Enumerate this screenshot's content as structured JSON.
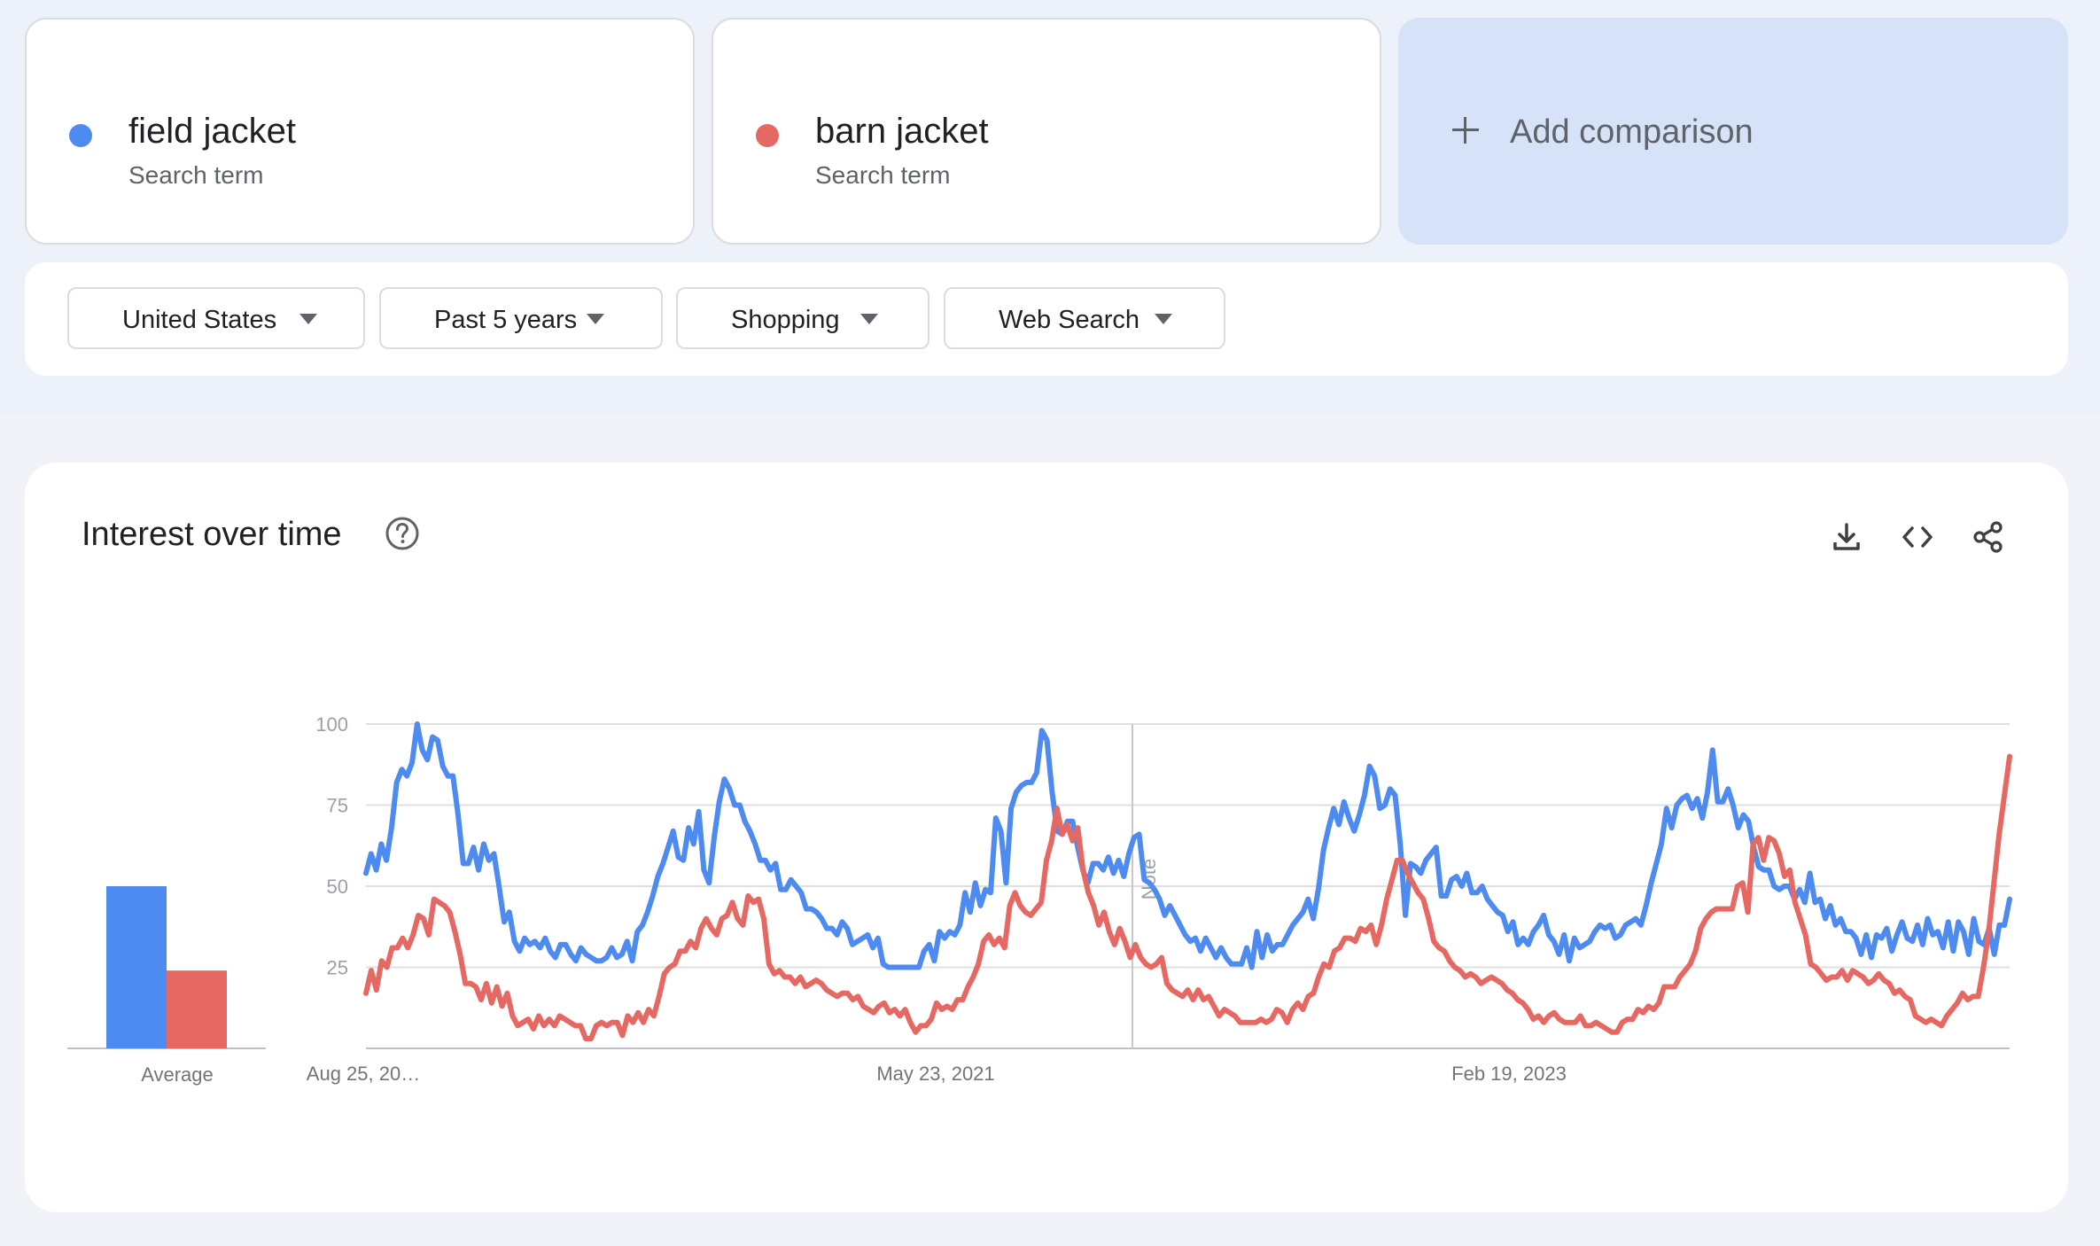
{
  "terms": [
    {
      "name": "field jacket",
      "sub": "Search term",
      "color": "#4e8bf0"
    },
    {
      "name": "barn jacket",
      "sub": "Search term",
      "color": "#e66862"
    }
  ],
  "add_comparison": {
    "label": "Add comparison",
    "icon": "plus-icon"
  },
  "filters": [
    {
      "label": "United States"
    },
    {
      "label": "Past 5 years"
    },
    {
      "label": "Shopping"
    },
    {
      "label": "Web Search"
    }
  ],
  "chart_card": {
    "title": "Interest over time",
    "icons": [
      "help-icon",
      "download-icon",
      "embed-icon",
      "share-icon"
    ]
  },
  "chart_data": {
    "type": "line",
    "y_ticks": [
      "100",
      "75",
      "50",
      "25"
    ],
    "ylim": [
      0,
      100
    ],
    "x_tick_labels": [
      "Aug 25, 20…",
      "May 23, 2021",
      "Feb 19, 2023"
    ],
    "note_label": "Note",
    "average": {
      "label": "Average",
      "values": [
        50,
        24
      ]
    },
    "grid": true,
    "series": [
      {
        "name": "field jacket",
        "color": "#4e8bf0",
        "values": [
          54,
          60,
          55,
          63,
          58,
          68,
          82,
          86,
          84,
          88,
          100,
          92,
          89,
          96,
          95,
          87,
          84,
          84,
          72,
          57,
          57,
          62,
          55,
          63,
          58,
          60,
          50,
          39,
          42,
          33,
          30,
          34,
          32,
          33,
          31,
          34,
          30,
          28,
          32,
          32,
          29,
          27,
          31,
          29,
          28,
          27,
          27,
          28,
          31,
          28,
          29,
          33,
          27,
          36,
          38,
          42,
          47,
          53,
          57,
          62,
          67,
          59,
          58,
          68,
          63,
          73,
          55,
          51,
          65,
          76,
          83,
          80,
          75,
          75,
          70,
          67,
          63,
          58,
          58,
          55,
          57,
          49,
          49,
          52,
          50,
          48,
          43,
          43,
          42,
          40,
          37,
          37,
          35,
          39,
          37,
          32,
          33,
          34,
          35,
          31,
          34,
          26,
          25,
          25,
          25,
          25,
          25,
          25,
          25,
          30,
          32,
          27,
          36,
          34,
          36,
          35,
          38,
          48,
          42,
          51,
          44,
          49,
          48,
          71,
          67,
          51,
          74,
          79,
          81,
          82,
          82,
          85,
          98,
          95,
          79,
          67,
          66,
          70,
          70,
          62,
          55,
          51,
          57,
          57,
          55,
          59,
          54,
          58,
          53,
          60,
          65,
          66,
          52,
          51,
          49,
          46,
          41,
          44,
          41,
          38,
          35,
          33,
          34,
          30,
          34,
          31,
          28,
          31,
          28,
          26,
          26,
          26,
          31,
          25,
          36,
          28,
          35,
          30,
          32,
          32,
          35,
          38,
          40,
          42,
          46,
          40,
          49,
          61,
          68,
          74,
          69,
          76,
          71,
          67,
          72,
          78,
          87,
          84,
          74,
          75,
          80,
          78,
          63,
          41,
          57,
          56,
          54,
          58,
          60,
          62,
          47,
          47,
          52,
          53,
          50,
          54,
          48,
          48,
          50,
          46,
          44,
          42,
          41,
          36,
          39,
          32,
          34,
          32,
          36,
          38,
          41,
          35,
          33,
          29,
          35,
          27,
          34,
          31,
          32,
          33,
          36,
          38,
          37,
          38,
          34,
          35,
          38,
          39,
          40,
          38,
          44,
          51,
          57,
          63,
          74,
          68,
          75,
          77,
          78,
          74,
          77,
          71,
          79,
          92,
          76,
          76,
          80,
          75,
          68,
          72,
          70,
          62,
          56,
          55,
          55,
          50,
          49,
          50,
          50,
          46,
          49,
          45,
          54,
          45,
          46,
          40,
          44,
          38,
          40,
          36,
          36,
          34,
          29,
          35,
          28,
          35,
          34,
          37,
          30,
          35,
          39,
          34,
          33,
          38,
          32,
          40,
          35,
          36,
          31,
          39,
          30,
          39,
          36,
          29,
          40,
          33,
          32,
          37,
          29,
          38,
          38,
          46
        ]
      },
      {
        "name": "barn jacket",
        "color": "#e66862",
        "values": [
          17,
          24,
          18,
          27,
          25,
          31,
          31,
          34,
          31,
          35,
          41,
          40,
          35,
          46,
          45,
          44,
          42,
          36,
          29,
          20,
          20,
          19,
          15,
          20,
          14,
          19,
          13,
          17,
          10,
          7,
          8,
          9,
          6,
          10,
          7,
          9,
          7,
          10,
          9,
          8,
          7,
          7,
          3,
          3,
          7,
          8,
          7,
          8,
          8,
          4,
          10,
          8,
          11,
          8,
          12,
          10,
          16,
          23,
          25,
          26,
          30,
          30,
          33,
          31,
          37,
          40,
          37,
          35,
          40,
          41,
          45,
          40,
          38,
          47,
          45,
          46,
          40,
          26,
          23,
          24,
          22,
          22,
          20,
          22,
          19,
          20,
          21,
          20,
          18,
          17,
          16,
          17,
          17,
          15,
          16,
          13,
          12,
          11,
          13,
          14,
          11,
          12,
          10,
          12,
          8,
          5,
          7,
          7,
          9,
          14,
          12,
          13,
          12,
          15,
          15,
          19,
          22,
          26,
          33,
          35,
          32,
          34,
          31,
          44,
          48,
          44,
          42,
          41,
          43,
          45,
          58,
          64,
          74,
          66,
          69,
          64,
          68,
          55,
          48,
          44,
          38,
          42,
          36,
          32,
          37,
          33,
          28,
          32,
          28,
          26,
          25,
          26,
          28,
          20,
          18,
          17,
          16,
          18,
          15,
          18,
          15,
          16,
          13,
          10,
          12,
          11,
          10,
          8,
          8,
          8,
          8,
          9,
          8,
          9,
          12,
          11,
          8,
          12,
          14,
          12,
          16,
          17,
          22,
          26,
          25,
          30,
          31,
          34,
          34,
          33,
          37,
          36,
          38,
          32,
          38,
          46,
          52,
          58,
          58,
          54,
          51,
          48,
          46,
          40,
          33,
          31,
          30,
          27,
          25,
          24,
          22,
          23,
          22,
          20,
          21,
          22,
          21,
          20,
          18,
          17,
          15,
          14,
          12,
          9,
          10,
          8,
          10,
          11,
          9,
          8,
          8,
          8,
          10,
          7,
          7,
          8,
          7,
          6,
          5,
          5,
          8,
          9,
          9,
          12,
          11,
          13,
          12,
          14,
          19,
          19,
          19,
          22,
          24,
          26,
          30,
          37,
          40,
          42,
          43,
          43,
          43,
          43,
          50,
          51,
          42,
          63,
          65,
          58,
          65,
          64,
          60,
          53,
          55,
          45,
          40,
          35,
          26,
          25,
          23,
          21,
          22,
          22,
          24,
          21,
          24,
          23,
          22,
          20,
          21,
          23,
          21,
          20,
          17,
          18,
          16,
          15,
          10,
          9,
          8,
          9,
          8,
          7,
          10,
          12,
          14,
          17,
          15,
          16,
          16,
          25,
          36,
          51,
          66,
          78,
          90
        ]
      }
    ]
  }
}
